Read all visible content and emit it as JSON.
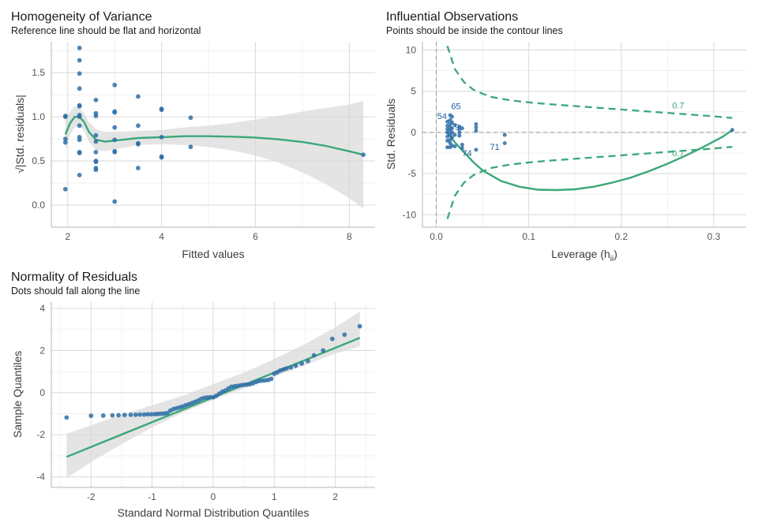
{
  "chart_data": [
    {
      "id": "homogeneity",
      "type": "scatter",
      "title": "Homogeneity of Variance",
      "subtitle": "Reference line should be flat and horizontal",
      "xlabel": "Fitted values",
      "ylabel": "√|Std. residuals|",
      "xlim": [
        1.65,
        8.55
      ],
      "ylim": [
        -0.25,
        1.85
      ],
      "xticks": [
        2,
        4,
        6,
        8
      ],
      "yticks": [
        0.0,
        0.5,
        1.0,
        1.5
      ],
      "ytick_labels": [
        "0.0",
        "0.5",
        "1.0",
        "1.5"
      ],
      "grid": true,
      "points": [
        [
          1.95,
          1.0
        ],
        [
          1.95,
          1.01
        ],
        [
          1.95,
          0.75
        ],
        [
          1.95,
          0.71
        ],
        [
          1.95,
          0.18
        ],
        [
          2.25,
          1.78
        ],
        [
          2.25,
          1.64
        ],
        [
          2.25,
          1.49
        ],
        [
          2.25,
          1.32
        ],
        [
          2.25,
          1.13
        ],
        [
          2.25,
          1.12
        ],
        [
          2.25,
          1.02
        ],
        [
          2.25,
          1.0
        ],
        [
          2.25,
          0.9
        ],
        [
          2.25,
          0.77
        ],
        [
          2.25,
          0.74
        ],
        [
          2.25,
          0.6
        ],
        [
          2.25,
          0.59
        ],
        [
          2.25,
          0.34
        ],
        [
          2.6,
          1.19
        ],
        [
          2.6,
          1.04
        ],
        [
          2.6,
          1.01
        ],
        [
          2.6,
          0.79
        ],
        [
          2.6,
          0.72
        ],
        [
          2.6,
          0.6
        ],
        [
          2.6,
          0.5
        ],
        [
          2.6,
          0.49
        ],
        [
          2.6,
          0.42
        ],
        [
          2.6,
          0.4
        ],
        [
          3.0,
          1.36
        ],
        [
          3.0,
          1.06
        ],
        [
          3.0,
          1.05
        ],
        [
          3.0,
          0.88
        ],
        [
          3.0,
          0.74
        ],
        [
          3.0,
          0.61
        ],
        [
          3.0,
          0.6
        ],
        [
          3.0,
          0.04
        ],
        [
          3.5,
          1.23
        ],
        [
          3.5,
          0.9
        ],
        [
          3.5,
          0.7
        ],
        [
          3.5,
          0.69
        ],
        [
          3.5,
          0.42
        ],
        [
          4.0,
          1.09
        ],
        [
          4.0,
          1.08
        ],
        [
          4.0,
          0.77
        ],
        [
          4.0,
          0.55
        ],
        [
          4.0,
          0.54
        ],
        [
          4.62,
          0.99
        ],
        [
          4.62,
          0.66
        ],
        [
          8.3,
          0.57
        ]
      ],
      "fit_x": [
        1.95,
        2.05,
        2.15,
        2.25,
        2.35,
        2.45,
        2.6,
        2.8,
        3.0,
        3.5,
        4.0,
        4.5,
        5.0,
        5.5,
        6.0,
        6.5,
        7.0,
        7.5,
        8.0,
        8.3
      ],
      "fit_y": [
        0.8,
        0.93,
        1.0,
        1.0,
        0.94,
        0.83,
        0.74,
        0.72,
        0.73,
        0.76,
        0.77,
        0.78,
        0.78,
        0.775,
        0.765,
        0.745,
        0.715,
        0.67,
        0.61,
        0.57
      ],
      "band_lo": [
        0.62,
        0.8,
        0.88,
        0.9,
        0.84,
        0.72,
        0.62,
        0.61,
        0.63,
        0.68,
        0.69,
        0.68,
        0.66,
        0.62,
        0.56,
        0.48,
        0.37,
        0.24,
        0.08,
        -0.04
      ],
      "band_hi": [
        0.98,
        1.06,
        1.12,
        1.1,
        1.04,
        0.94,
        0.86,
        0.83,
        0.83,
        0.84,
        0.85,
        0.88,
        0.9,
        0.93,
        0.97,
        1.01,
        1.06,
        1.1,
        1.14,
        1.18
      ]
    },
    {
      "id": "influential",
      "type": "scatter",
      "title": "Influential Observations",
      "subtitle": "Points should be inside the contour lines",
      "xlabel": "Leverage (h",
      "xlabel_sub": "ii",
      "xlabel_end": ")",
      "ylabel": "Std. Residuals",
      "xlim": [
        -0.015,
        0.335
      ],
      "ylim": [
        -11.5,
        11.0
      ],
      "xticks": [
        0.0,
        0.1,
        0.2,
        0.3
      ],
      "xtick_labels": [
        "0.0",
        "0.1",
        "0.2",
        "0.3"
      ],
      "yticks": [
        -10,
        -5,
        0,
        5,
        10
      ],
      "grid": true,
      "points": [
        [
          0.012,
          1.3
        ],
        [
          0.012,
          0.8
        ],
        [
          0.012,
          0.4
        ],
        [
          0.012,
          0.0
        ],
        [
          0.012,
          -0.5
        ],
        [
          0.012,
          -1.0
        ],
        [
          0.012,
          -1.8
        ],
        [
          0.015,
          2.1
        ],
        [
          0.015,
          1.5
        ],
        [
          0.015,
          1.0
        ],
        [
          0.015,
          0.6
        ],
        [
          0.015,
          0.2
        ],
        [
          0.015,
          -0.3
        ],
        [
          0.015,
          -0.9
        ],
        [
          0.015,
          -1.3
        ],
        [
          0.015,
          -1.8
        ],
        [
          0.017,
          1.9
        ],
        [
          0.017,
          1.2
        ],
        [
          0.017,
          0.5
        ],
        [
          0.017,
          0.0
        ],
        [
          0.017,
          -0.6
        ],
        [
          0.017,
          -1.6
        ],
        [
          0.02,
          0.9
        ],
        [
          0.02,
          -0.3
        ],
        [
          0.02,
          -1.7
        ],
        [
          0.025,
          0.7
        ],
        [
          0.025,
          0.4
        ],
        [
          0.025,
          0.0
        ],
        [
          0.025,
          -0.4
        ],
        [
          0.028,
          0.5
        ],
        [
          0.028,
          -1.5
        ],
        [
          0.028,
          -1.9
        ],
        [
          0.043,
          1.0
        ],
        [
          0.043,
          0.6
        ],
        [
          0.043,
          0.2
        ],
        [
          0.043,
          -2.1
        ],
        [
          0.074,
          -0.3
        ],
        [
          0.074,
          -1.3
        ],
        [
          0.32,
          0.3
        ]
      ],
      "labels": [
        {
          "text": "65",
          "x": 0.016,
          "y": 2.8
        },
        {
          "text": "54",
          "x": 0.001,
          "y": 1.6
        },
        {
          "text": "9",
          "x": 0.02,
          "y": 0.3
        },
        {
          "text": "74",
          "x": 0.028,
          "y": -2.9
        },
        {
          "text": "71",
          "x": 0.058,
          "y": -2.1
        }
      ],
      "fit_x": [
        0.012,
        0.02,
        0.03,
        0.04,
        0.05,
        0.07,
        0.09,
        0.11,
        0.13,
        0.15,
        0.17,
        0.19,
        0.21,
        0.23,
        0.25,
        0.27,
        0.29,
        0.31,
        0.32
      ],
      "fit_y": [
        0.0,
        -1.2,
        -2.4,
        -3.6,
        -4.6,
        -5.9,
        -6.6,
        -6.95,
        -7.0,
        -6.9,
        -6.6,
        -6.1,
        -5.5,
        -4.7,
        -3.8,
        -2.8,
        -1.7,
        -0.5,
        0.3
      ],
      "contour_x": [
        0.012,
        0.02,
        0.03,
        0.04,
        0.05,
        0.06,
        0.08,
        0.1,
        0.12,
        0.15,
        0.18,
        0.21,
        0.24,
        0.27,
        0.3,
        0.32
      ],
      "contour_upper": [
        10.5,
        7.7,
        6.1,
        5.2,
        4.7,
        4.3,
        3.9,
        3.65,
        3.45,
        3.2,
        2.95,
        2.7,
        2.45,
        2.2,
        1.95,
        1.75
      ],
      "contour_lower": [
        -10.5,
        -7.7,
        -6.1,
        -5.2,
        -4.7,
        -4.3,
        -3.9,
        -3.65,
        -3.45,
        -3.2,
        -2.95,
        -2.7,
        -2.45,
        -2.2,
        -1.95,
        -1.75
      ],
      "contour_labels": [
        {
          "text": "0.7",
          "x": 0.255,
          "y": 2.9
        },
        {
          "text": "0.7",
          "x": 0.255,
          "y": -2.9
        }
      ]
    },
    {
      "id": "normality",
      "type": "scatter",
      "title": "Normality of Residuals",
      "subtitle": "Dots should fall along the line",
      "xlabel": "Standard Normal Distribution Quantiles",
      "ylabel": "Sample Quantiles",
      "xlim": [
        -2.65,
        2.65
      ],
      "ylim": [
        -4.5,
        4.3
      ],
      "xticks": [
        -2,
        -1,
        0,
        1,
        2
      ],
      "yticks": [
        -4,
        -2,
        0,
        2,
        4
      ],
      "grid": true,
      "points": [
        [
          -2.4,
          -1.18
        ],
        [
          -2.0,
          -1.1
        ],
        [
          -1.8,
          -1.09
        ],
        [
          -1.65,
          -1.08
        ],
        [
          -1.55,
          -1.07
        ],
        [
          -1.45,
          -1.06
        ],
        [
          -1.35,
          -1.05
        ],
        [
          -1.27,
          -1.05
        ],
        [
          -1.2,
          -1.04
        ],
        [
          -1.13,
          -1.04
        ],
        [
          -1.07,
          -1.03
        ],
        [
          -1.01,
          -1.03
        ],
        [
          -0.95,
          -1.02
        ],
        [
          -0.9,
          -1.01
        ],
        [
          -0.85,
          -1.0
        ],
        [
          -0.8,
          -0.99
        ],
        [
          -0.75,
          -0.97
        ],
        [
          -0.7,
          -0.85
        ],
        [
          -0.65,
          -0.78
        ],
        [
          -0.6,
          -0.74
        ],
        [
          -0.55,
          -0.7
        ],
        [
          -0.5,
          -0.66
        ],
        [
          -0.45,
          -0.6
        ],
        [
          -0.4,
          -0.55
        ],
        [
          -0.35,
          -0.5
        ],
        [
          -0.3,
          -0.44
        ],
        [
          -0.25,
          -0.38
        ],
        [
          -0.2,
          -0.3
        ],
        [
          -0.15,
          -0.25
        ],
        [
          -0.1,
          -0.23
        ],
        [
          -0.05,
          -0.22
        ],
        [
          0.0,
          -0.22
        ],
        [
          0.05,
          -0.15
        ],
        [
          0.1,
          -0.05
        ],
        [
          0.15,
          0.05
        ],
        [
          0.2,
          0.1
        ],
        [
          0.25,
          0.2
        ],
        [
          0.3,
          0.28
        ],
        [
          0.35,
          0.3
        ],
        [
          0.4,
          0.32
        ],
        [
          0.45,
          0.35
        ],
        [
          0.5,
          0.37
        ],
        [
          0.55,
          0.38
        ],
        [
          0.6,
          0.4
        ],
        [
          0.65,
          0.44
        ],
        [
          0.7,
          0.5
        ],
        [
          0.75,
          0.55
        ],
        [
          0.8,
          0.57
        ],
        [
          0.85,
          0.58
        ],
        [
          0.9,
          0.6
        ],
        [
          0.95,
          0.65
        ],
        [
          1.0,
          0.9
        ],
        [
          1.05,
          0.97
        ],
        [
          1.1,
          1.05
        ],
        [
          1.15,
          1.1
        ],
        [
          1.2,
          1.15
        ],
        [
          1.27,
          1.2
        ],
        [
          1.35,
          1.28
        ],
        [
          1.45,
          1.38
        ],
        [
          1.55,
          1.5
        ],
        [
          1.65,
          1.77
        ],
        [
          1.8,
          2.0
        ],
        [
          1.95,
          2.55
        ],
        [
          2.15,
          2.75
        ],
        [
          2.4,
          3.15
        ]
      ],
      "fit_x": [
        -2.4,
        2.4
      ],
      "fit_y": [
        -3.05,
        2.6
      ],
      "band_x": [
        -2.4,
        -2.0,
        -1.5,
        -1.0,
        -0.5,
        0.0,
        0.5,
        1.0,
        1.5,
        2.0,
        2.4
      ],
      "band_lo": [
        -4.05,
        -3.3,
        -2.45,
        -1.65,
        -0.95,
        -0.35,
        0.2,
        0.75,
        1.3,
        1.85,
        2.2
      ],
      "band_hi": [
        -1.95,
        -1.55,
        -1.05,
        -0.6,
        -0.15,
        0.4,
        0.95,
        1.6,
        2.3,
        3.1,
        3.85
      ]
    }
  ]
}
